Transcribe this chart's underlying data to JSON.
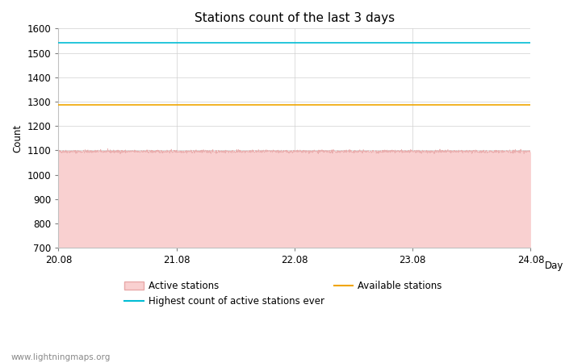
{
  "title": "Stations count of the last 3 days",
  "xlabel": "Day",
  "ylabel": "Count",
  "xlim": [
    20.08,
    24.08
  ],
  "ylim": [
    700,
    1600
  ],
  "yticks": [
    700,
    800,
    900,
    1000,
    1100,
    1200,
    1300,
    1400,
    1500,
    1600
  ],
  "xticks": [
    20.08,
    21.08,
    22.08,
    23.08,
    24.08
  ],
  "xtick_labels": [
    "20.08",
    "21.08",
    "22.08",
    "23.08",
    "24.08"
  ],
  "active_stations_value": 1095,
  "active_stations_noise": 3,
  "highest_count_ever": 1543,
  "available_stations": 1285,
  "active_fill_color": "#f9d0d0",
  "active_line_color": "#e8a8a8",
  "highest_color": "#00bcd4",
  "available_color": "#f0a500",
  "fill_bottom": 700,
  "watermark": "www.lightningmaps.org",
  "title_fontsize": 11,
  "label_fontsize": 8.5,
  "tick_fontsize": 8.5,
  "watermark_fontsize": 7.5
}
